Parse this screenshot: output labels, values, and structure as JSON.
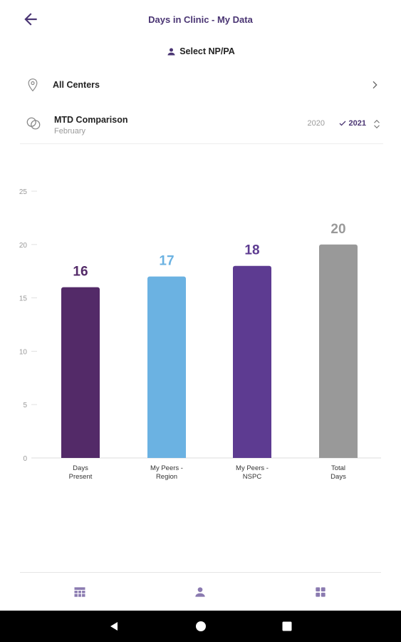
{
  "header": {
    "title": "Days in Clinic - My Data"
  },
  "select": {
    "label": "Select NP/PA"
  },
  "centers": {
    "label": "All Centers"
  },
  "comparison": {
    "title": "MTD Comparison",
    "month": "February",
    "years": [
      "2020",
      "2021"
    ],
    "selected_year": "2021"
  },
  "colors": {
    "accent": "#4a3573",
    "nav_icon": "#8a7ab0",
    "bar_days_present": "#532a68",
    "bar_peers_region": "#6bb2e2",
    "bar_peers_nspc": "#5d3b91",
    "bar_total_days": "#999999"
  },
  "chart_data": {
    "type": "bar",
    "categories": [
      [
        "Days",
        "Present"
      ],
      [
        "My Peers -",
        "Region"
      ],
      [
        "My Peers -",
        "NSPC"
      ],
      [
        "Total",
        "Days"
      ]
    ],
    "values": [
      16,
      17,
      18,
      20
    ],
    "value_label_colors": [
      "#532a68",
      "#6bb2e2",
      "#5d3b91",
      "#999999"
    ],
    "bar_colors": [
      "#532a68",
      "#6bb2e2",
      "#5d3b91",
      "#999999"
    ],
    "ylim": [
      0,
      25
    ],
    "yticks": [
      0,
      5,
      10,
      15,
      20,
      25
    ],
    "grid": "tick-dashes",
    "title": "",
    "xlabel": "",
    "ylabel": ""
  },
  "bottom_nav": {
    "icons": [
      "table-icon",
      "person-icon",
      "grid-icon"
    ]
  },
  "system_nav": {
    "icons": [
      "back-triangle-icon",
      "home-circle-icon",
      "recents-square-icon"
    ]
  }
}
